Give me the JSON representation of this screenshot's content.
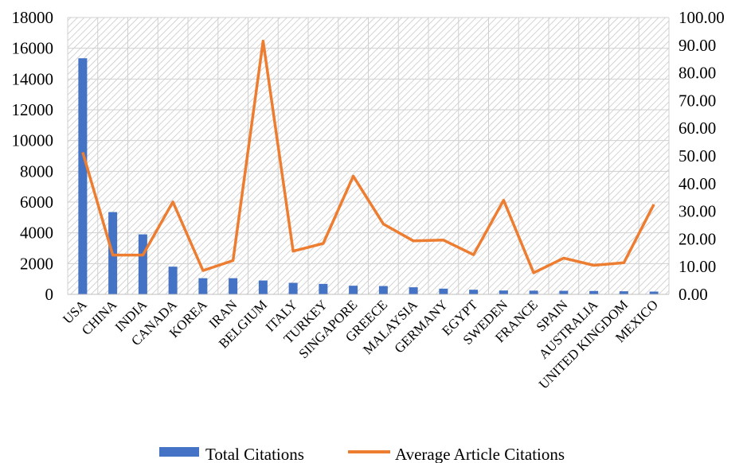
{
  "chart_data": {
    "type": "bar+line",
    "categories": [
      "USA",
      "CHINA",
      "INDIA",
      "CANADA",
      "KOREA",
      "IRAN",
      "BELGIUM",
      "ITALY",
      "TURKEY",
      "SINGAPORE",
      "GREECE",
      "MALAYSIA",
      "GERMANY",
      "EGYPT",
      "SWEDEN",
      "FRANCE",
      "SPAIN",
      "AUSTRALIA",
      "UNITED KINGDOM",
      "MEXICO"
    ],
    "series": [
      {
        "name": "Total Citations",
        "type": "bar",
        "axis": "left",
        "color": "#4472C4",
        "values": [
          15350,
          5350,
          3900,
          1800,
          1050,
          1050,
          900,
          750,
          680,
          560,
          540,
          460,
          370,
          300,
          250,
          240,
          230,
          220,
          200,
          180
        ]
      },
      {
        "name": "Average Article Citations",
        "type": "line",
        "axis": "right",
        "color": "#ED7D31",
        "values": [
          51.3,
          14.2,
          14.2,
          33.4,
          8.6,
          12.2,
          91.5,
          15.6,
          18.4,
          42.7,
          25.4,
          19.3,
          19.6,
          14.3,
          34.0,
          7.8,
          13.1,
          10.5,
          11.4,
          32.5
        ]
      }
    ],
    "y_left": {
      "ylim": [
        0,
        18000
      ],
      "ticks": [
        "0",
        "2000",
        "4000",
        "6000",
        "8000",
        "10000",
        "12000",
        "14000",
        "16000",
        "18000"
      ]
    },
    "y_right": {
      "ylim": [
        0,
        100
      ],
      "ticks": [
        "0.00",
        "10.00",
        "20.00",
        "30.00",
        "40.00",
        "50.00",
        "60.00",
        "70.00",
        "80.00",
        "90.00",
        "100.00"
      ]
    },
    "grid": true,
    "legend_position": "bottom"
  },
  "legend": {
    "bar_label": "Total Citations",
    "line_label": "Average Article Citations"
  }
}
